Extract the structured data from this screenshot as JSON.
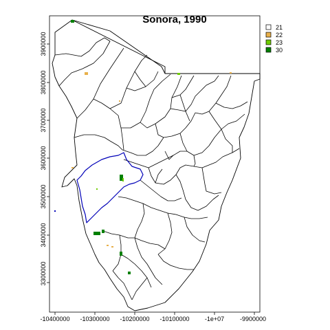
{
  "title": "Sonora, 1990",
  "axes": {
    "x_ticks": [
      "-10400000",
      "-10300000",
      "-10200000",
      "-10100000",
      "-1e+07",
      "-9900000"
    ],
    "y_ticks": [
      "3300000",
      "3400000",
      "3500000",
      "3600000",
      "3700000",
      "3800000",
      "3900000"
    ]
  },
  "legend": {
    "position": "top-right",
    "items": [
      {
        "label": "21",
        "color": "#ffffff"
      },
      {
        "label": "22",
        "color": "#e8b04a"
      },
      {
        "label": "23",
        "color": "#6fcc00"
      },
      {
        "label": "30",
        "color": "#008000"
      }
    ]
  }
}
